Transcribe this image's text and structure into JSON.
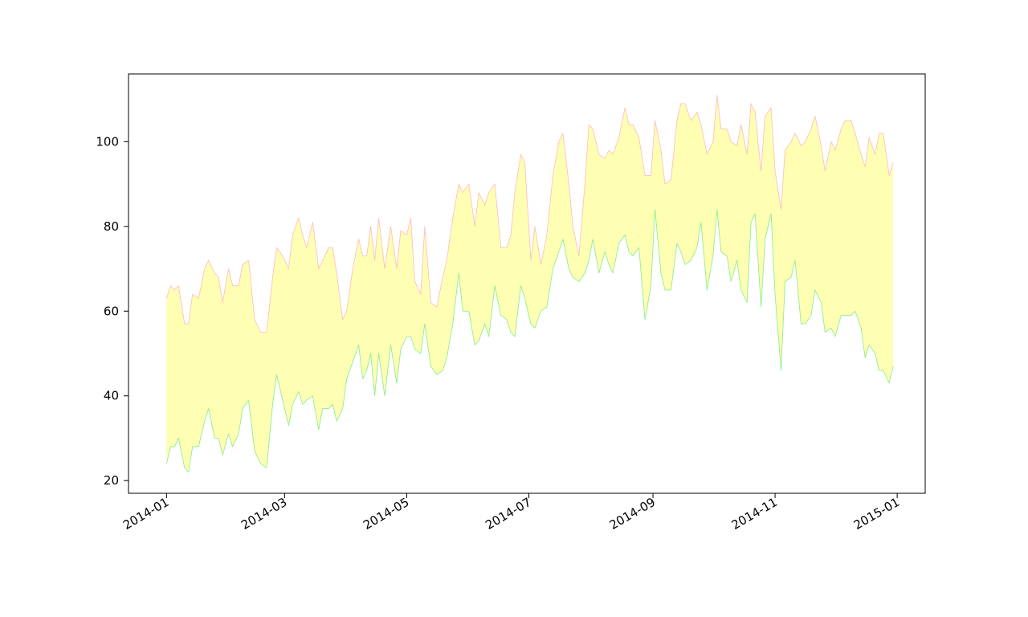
{
  "chart_data": {
    "type": "area",
    "title": "",
    "xlabel": "",
    "ylabel": "",
    "x_axis": {
      "kind": "date",
      "range": [
        "2013-12-13",
        "2015-01-15"
      ],
      "ticks": [
        "2014-01-01",
        "2014-03-01",
        "2014-05-01",
        "2014-07-01",
        "2014-09-01",
        "2014-11-01",
        "2015-01-01"
      ],
      "tick_labels": [
        "2014-01",
        "2014-03",
        "2014-05",
        "2014-07",
        "2014-09",
        "2014-11",
        "2015-01"
      ]
    },
    "y_axis": {
      "range": [
        17,
        116
      ],
      "ticks": [
        20,
        40,
        60,
        80,
        100
      ],
      "tick_labels": [
        "20",
        "40",
        "60",
        "80",
        "100"
      ]
    },
    "grid": false,
    "legend": "none",
    "colors": {
      "fill": "#ffffb3",
      "upper_line": "#ffc0c0",
      "lower_line": "#90ee90",
      "axes": "#000000"
    },
    "series": [
      {
        "role": "upper",
        "points": [
          [
            "2014-01-01",
            63
          ],
          [
            "2014-01-03",
            66
          ],
          [
            "2014-01-05",
            65
          ],
          [
            "2014-01-07",
            66
          ],
          [
            "2014-01-10",
            57
          ],
          [
            "2014-01-12",
            57
          ],
          [
            "2014-01-14",
            64
          ],
          [
            "2014-01-17",
            63
          ],
          [
            "2014-01-20",
            70
          ],
          [
            "2014-01-22",
            72
          ],
          [
            "2014-01-25",
            69
          ],
          [
            "2014-01-27",
            68
          ],
          [
            "2014-01-29",
            62
          ],
          [
            "2014-02-01",
            70
          ],
          [
            "2014-02-03",
            66
          ],
          [
            "2014-02-06",
            66
          ],
          [
            "2014-02-08",
            71
          ],
          [
            "2014-02-11",
            72
          ],
          [
            "2014-02-14",
            58
          ],
          [
            "2014-02-17",
            55
          ],
          [
            "2014-02-20",
            55
          ],
          [
            "2014-02-23",
            68
          ],
          [
            "2014-02-25",
            75
          ],
          [
            "2014-02-28",
            73
          ],
          [
            "2014-03-03",
            70
          ],
          [
            "2014-03-05",
            78
          ],
          [
            "2014-03-08",
            82
          ],
          [
            "2014-03-10",
            78
          ],
          [
            "2014-03-12",
            75
          ],
          [
            "2014-03-15",
            81
          ],
          [
            "2014-03-18",
            70
          ],
          [
            "2014-03-20",
            72
          ],
          [
            "2014-03-23",
            75
          ],
          [
            "2014-03-25",
            75
          ],
          [
            "2014-03-27",
            69
          ],
          [
            "2014-03-30",
            58
          ],
          [
            "2014-04-01",
            60
          ],
          [
            "2014-04-04",
            70
          ],
          [
            "2014-04-07",
            77
          ],
          [
            "2014-04-09",
            73
          ],
          [
            "2014-04-11",
            73
          ],
          [
            "2014-04-13",
            80
          ],
          [
            "2014-04-15",
            72
          ],
          [
            "2014-04-17",
            82
          ],
          [
            "2014-04-20",
            70
          ],
          [
            "2014-04-23",
            80
          ],
          [
            "2014-04-26",
            70
          ],
          [
            "2014-04-28",
            79
          ],
          [
            "2014-05-01",
            78
          ],
          [
            "2014-05-03",
            82
          ],
          [
            "2014-05-05",
            67
          ],
          [
            "2014-05-08",
            64
          ],
          [
            "2014-05-10",
            80
          ],
          [
            "2014-05-13",
            62
          ],
          [
            "2014-05-16",
            61
          ],
          [
            "2014-05-19",
            68
          ],
          [
            "2014-05-21",
            72
          ],
          [
            "2014-05-24",
            82
          ],
          [
            "2014-05-27",
            90
          ],
          [
            "2014-05-29",
            88
          ],
          [
            "2014-06-01",
            90
          ],
          [
            "2014-06-04",
            80
          ],
          [
            "2014-06-06",
            88
          ],
          [
            "2014-06-09",
            85
          ],
          [
            "2014-06-11",
            88
          ],
          [
            "2014-06-14",
            90
          ],
          [
            "2014-06-17",
            75
          ],
          [
            "2014-06-20",
            75
          ],
          [
            "2014-06-22",
            78
          ],
          [
            "2014-06-24",
            88
          ],
          [
            "2014-06-27",
            97
          ],
          [
            "2014-06-29",
            95
          ],
          [
            "2014-07-02",
            72
          ],
          [
            "2014-07-04",
            80
          ],
          [
            "2014-07-07",
            71
          ],
          [
            "2014-07-10",
            78
          ],
          [
            "2014-07-13",
            92
          ],
          [
            "2014-07-16",
            100
          ],
          [
            "2014-07-18",
            102
          ],
          [
            "2014-07-21",
            90
          ],
          [
            "2014-07-23",
            80
          ],
          [
            "2014-07-26",
            73
          ],
          [
            "2014-07-29",
            90
          ],
          [
            "2014-07-31",
            104
          ],
          [
            "2014-08-02",
            103
          ],
          [
            "2014-08-05",
            97
          ],
          [
            "2014-08-08",
            96
          ],
          [
            "2014-08-10",
            98
          ],
          [
            "2014-08-12",
            97
          ],
          [
            "2014-08-15",
            101
          ],
          [
            "2014-08-18",
            108
          ],
          [
            "2014-08-20",
            104
          ],
          [
            "2014-08-22",
            104
          ],
          [
            "2014-08-25",
            101
          ],
          [
            "2014-08-28",
            92
          ],
          [
            "2014-08-31",
            92
          ],
          [
            "2014-09-02",
            105
          ],
          [
            "2014-09-05",
            98
          ],
          [
            "2014-09-07",
            90
          ],
          [
            "2014-09-10",
            91
          ],
          [
            "2014-09-13",
            105
          ],
          [
            "2014-09-15",
            109
          ],
          [
            "2014-09-17",
            109
          ],
          [
            "2014-09-20",
            105
          ],
          [
            "2014-09-23",
            107
          ],
          [
            "2014-09-25",
            104
          ],
          [
            "2014-09-28",
            97
          ],
          [
            "2014-10-01",
            100
          ],
          [
            "2014-10-03",
            111
          ],
          [
            "2014-10-05",
            103
          ],
          [
            "2014-10-08",
            103
          ],
          [
            "2014-10-10",
            100
          ],
          [
            "2014-10-13",
            99
          ],
          [
            "2014-10-15",
            104
          ],
          [
            "2014-10-18",
            97
          ],
          [
            "2014-10-20",
            109
          ],
          [
            "2014-10-22",
            107
          ],
          [
            "2014-10-25",
            93
          ],
          [
            "2014-10-27",
            106
          ],
          [
            "2014-10-30",
            108
          ],
          [
            "2014-11-01",
            93
          ],
          [
            "2014-11-04",
            84
          ],
          [
            "2014-11-06",
            98
          ],
          [
            "2014-11-09",
            100
          ],
          [
            "2014-11-11",
            102
          ],
          [
            "2014-11-14",
            99
          ],
          [
            "2014-11-16",
            100
          ],
          [
            "2014-11-19",
            103
          ],
          [
            "2014-11-21",
            106
          ],
          [
            "2014-11-24",
            99
          ],
          [
            "2014-11-26",
            93
          ],
          [
            "2014-11-29",
            100
          ],
          [
            "2014-12-01",
            98
          ],
          [
            "2014-12-04",
            103
          ],
          [
            "2014-12-06",
            105
          ],
          [
            "2014-12-09",
            105
          ],
          [
            "2014-12-11",
            102
          ],
          [
            "2014-12-14",
            97
          ],
          [
            "2014-12-16",
            94
          ],
          [
            "2014-12-18",
            101
          ],
          [
            "2014-12-21",
            97
          ],
          [
            "2014-12-23",
            102
          ],
          [
            "2014-12-25",
            102
          ],
          [
            "2014-12-28",
            92
          ],
          [
            "2014-12-30",
            95
          ]
        ]
      }
    ]
  }
}
